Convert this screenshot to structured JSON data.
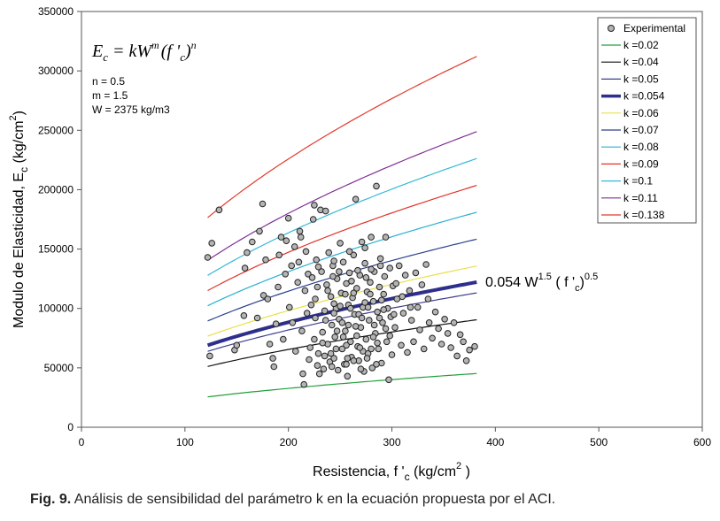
{
  "caption": {
    "label": "Fig. 9.",
    "text": " Análisis de sensibilidad del parámetro k en la ecuación propuesta por el ACI."
  },
  "chart_data": {
    "type": "scatter",
    "title": "",
    "xlabel": "Resistencia, f '",
    "xlabel_sub": "c",
    "xlabel_units": " (kg/cm",
    "xlabel_sup": "2",
    "xlabel_close": " )",
    "ylabel": "Modulo de Elasticidad, E",
    "ylabel_sub": "c",
    "ylabel_units": " (kg/cm",
    "ylabel_sup": "2",
    "ylabel_close": ")",
    "xlim": [
      0,
      600
    ],
    "ylim": [
      0,
      350000
    ],
    "xticks": [
      0,
      100,
      200,
      300,
      400,
      500,
      600
    ],
    "yticks": [
      0,
      50000,
      100000,
      150000,
      200000,
      250000,
      300000,
      350000
    ],
    "xtick_labels": [
      "0",
      "100",
      "200",
      "300",
      "400",
      "500",
      "600"
    ],
    "ytick_labels": [
      "0",
      "50000",
      "100000",
      "150000",
      "200000",
      "250000",
      "300000",
      "350000"
    ],
    "grid": false,
    "legend_position": "top-right",
    "equation": {
      "lhs": "E",
      "lhs_sub": "c",
      "eq": " = kW",
      "m": "m",
      "open": "(f '",
      "f_sub": "c",
      "close": ")",
      "n": "n"
    },
    "params": [
      "n = 0.5",
      "m = 1.5",
      "W = 2375 kg/m3"
    ],
    "annotation": {
      "prefix": "0.054  W",
      "exp1": "1.5",
      "mid": " ( f '",
      "sub": "c",
      "close": ")",
      "exp2": "0.5"
    },
    "curve_x_range": [
      122,
      382
    ],
    "model": {
      "W": 2375,
      "m": 1.5,
      "n": 0.5
    },
    "scatter_series": {
      "name": "Experimental",
      "color": "#b4b4b4",
      "points": [
        [
          122,
          143000
        ],
        [
          126,
          155000
        ],
        [
          133,
          183000
        ],
        [
          124,
          60000
        ],
        [
          148,
          65000
        ],
        [
          150,
          69000
        ],
        [
          157,
          94000
        ],
        [
          158,
          134000
        ],
        [
          160,
          147000
        ],
        [
          165,
          156000
        ],
        [
          172,
          165000
        ],
        [
          175,
          188000
        ],
        [
          170,
          92000
        ],
        [
          176,
          111000
        ],
        [
          178,
          141000
        ],
        [
          180,
          108000
        ],
        [
          182,
          70000
        ],
        [
          185,
          58000
        ],
        [
          186,
          51000
        ],
        [
          188,
          87000
        ],
        [
          190,
          118000
        ],
        [
          191,
          145000
        ],
        [
          193,
          160000
        ],
        [
          195,
          74000
        ],
        [
          197,
          129000
        ],
        [
          198,
          157000
        ],
        [
          200,
          176000
        ],
        [
          201,
          101000
        ],
        [
          203,
          136000
        ],
        [
          204,
          88000
        ],
        [
          206,
          152000
        ],
        [
          207,
          64000
        ],
        [
          209,
          122000
        ],
        [
          210,
          139000
        ],
        [
          211,
          165000
        ],
        [
          212,
          160000
        ],
        [
          213,
          81000
        ],
        [
          214,
          45000
        ],
        [
          215,
          36000
        ],
        [
          216,
          115000
        ],
        [
          217,
          148000
        ],
        [
          218,
          96000
        ],
        [
          219,
          129000
        ],
        [
          220,
          57000
        ],
        [
          221,
          67000
        ],
        [
          222,
          103000
        ],
        [
          223,
          126000
        ],
        [
          224,
          175000
        ],
        [
          225,
          187000
        ],
        [
          226,
          92000
        ],
        [
          227,
          141000
        ],
        [
          228,
          118000
        ],
        [
          229,
          62000
        ],
        [
          230,
          45000
        ],
        [
          231,
          183000
        ],
        [
          232,
          131000
        ],
        [
          233,
          80000
        ],
        [
          234,
          49000
        ],
        [
          235,
          98000
        ],
        [
          236,
          182000
        ],
        [
          237,
          120000
        ],
        [
          238,
          70000
        ],
        [
          239,
          147000
        ],
        [
          240,
          55000
        ],
        [
          241,
          110000
        ],
        [
          242,
          86000
        ],
        [
          243,
          136000
        ],
        [
          244,
          58000
        ],
        [
          245,
          76000
        ],
        [
          246,
          100000
        ],
        [
          247,
          125000
        ],
        [
          248,
          48000
        ],
        [
          249,
          91000
        ],
        [
          250,
          155000
        ],
        [
          251,
          113000
        ],
        [
          252,
          66000
        ],
        [
          253,
          139000
        ],
        [
          254,
          53000
        ],
        [
          255,
          81000
        ],
        [
          256,
          121000
        ],
        [
          257,
          43000
        ],
        [
          258,
          103000
        ],
        [
          259,
          130000
        ],
        [
          260,
          72000
        ],
        [
          261,
          59000
        ],
        [
          262,
          109000
        ],
        [
          263,
          145000
        ],
        [
          264,
          95000
        ],
        [
          265,
          192000
        ],
        [
          266,
          117000
        ],
        [
          267,
          68000
        ],
        [
          268,
          56000
        ],
        [
          269,
          128000
        ],
        [
          270,
          84000
        ],
        [
          271,
          156000
        ],
        [
          272,
          101000
        ],
        [
          273,
          47000
        ],
        [
          274,
          138000
        ],
        [
          275,
          74000
        ],
        [
          276,
          114000
        ],
        [
          277,
          62000
        ],
        [
          278,
          90000
        ],
        [
          279,
          122000
        ],
        [
          280,
          160000
        ],
        [
          281,
          50000
        ],
        [
          282,
          106000
        ],
        [
          283,
          131000
        ],
        [
          284,
          79000
        ],
        [
          285,
          203000
        ],
        [
          286,
          97000
        ],
        [
          287,
          66000
        ],
        [
          288,
          118000
        ],
        [
          289,
          142000
        ],
        [
          290,
          54000
        ],
        [
          291,
          88000
        ],
        [
          292,
          112000
        ],
        [
          293,
          127000
        ],
        [
          294,
          160000
        ],
        [
          295,
          72000
        ],
        [
          296,
          100000
        ],
        [
          297,
          40000
        ],
        [
          298,
          134000
        ],
        [
          299,
          93000
        ],
        [
          300,
          61000
        ],
        [
          301,
          119000
        ],
        [
          303,
          84000
        ],
        [
          305,
          108000
        ],
        [
          307,
          136000
        ],
        [
          309,
          69000
        ],
        [
          311,
          96000
        ],
        [
          313,
          128000
        ],
        [
          315,
          63000
        ],
        [
          317,
          115000
        ],
        [
          319,
          90000
        ],
        [
          321,
          72000
        ],
        [
          323,
          130000
        ],
        [
          325,
          101000
        ],
        [
          327,
          82000
        ],
        [
          329,
          120000
        ],
        [
          331,
          66000
        ],
        [
          333,
          137000
        ],
        [
          336,
          88000
        ],
        [
          339,
          75000
        ],
        [
          342,
          97000
        ],
        [
          345,
          83000
        ],
        [
          348,
          70000
        ],
        [
          351,
          91000
        ],
        [
          354,
          79000
        ],
        [
          357,
          67000
        ],
        [
          360,
          88000
        ],
        [
          363,
          60000
        ],
        [
          366,
          78000
        ],
        [
          369,
          72000
        ],
        [
          372,
          56000
        ],
        [
          375,
          65000
        ],
        [
          380,
          68000
        ],
        [
          244,
          96000
        ],
        [
          252,
          88000
        ],
        [
          261,
          123000
        ],
        [
          268,
          95000
        ],
        [
          274,
          105000
        ],
        [
          283,
          86000
        ],
        [
          292,
          99000
        ],
        [
          241,
          62000
        ],
        [
          256,
          69000
        ],
        [
          266,
          77000
        ],
        [
          276,
          58000
        ],
        [
          286,
          71000
        ],
        [
          233,
          71000
        ],
        [
          247,
          81000
        ],
        [
          258,
          86000
        ],
        [
          271,
          92000
        ],
        [
          280,
          133000
        ],
        [
          226,
          108000
        ],
        [
          238,
          115000
        ],
        [
          249,
          131000
        ],
        [
          263,
          113000
        ],
        [
          277,
          101000
        ],
        [
          288,
          92000
        ],
        [
          253,
          76000
        ],
        [
          263,
          56000
        ],
        [
          272,
          64000
        ],
        [
          244,
          104000
        ],
        [
          255,
          112000
        ],
        [
          267,
          132000
        ],
        [
          279,
          112000
        ],
        [
          236,
          90000
        ],
        [
          246,
          66000
        ],
        [
          257,
          58000
        ],
        [
          269,
          67000
        ],
        [
          282,
          76000
        ],
        [
          294,
          83000
        ],
        [
          225,
          74000
        ],
        [
          243,
          127000
        ],
        [
          260,
          100000
        ],
        [
          275,
          126000
        ],
        [
          290,
          107000
        ],
        [
          302,
          95000
        ],
        [
          235,
          60000
        ],
        [
          250,
          102000
        ],
        [
          265,
          85000
        ],
        [
          280,
          66000
        ],
        [
          298,
          77000
        ],
        [
          310,
          110000
        ],
        [
          228,
          52000
        ],
        [
          242,
          51000
        ],
        [
          256,
          53000
        ],
        [
          270,
          49000
        ],
        [
          285,
          53000
        ],
        [
          229,
          135000
        ],
        [
          244,
          140000
        ],
        [
          259,
          148000
        ],
        [
          274,
          151000
        ],
        [
          289,
          136000
        ],
        [
          304,
          121000
        ],
        [
          318,
          101000
        ],
        [
          335,
          108000
        ]
      ]
    },
    "series": [
      {
        "name": "k =0.02",
        "k": 0.02,
        "color": "#22a03a",
        "width": 1.2
      },
      {
        "name": "k =0.04",
        "k": 0.04,
        "color": "#111111",
        "width": 1.2
      },
      {
        "name": "k =0.05",
        "k": 0.05,
        "color": "#3d3f8f",
        "width": 1.2
      },
      {
        "name": "k =0.054",
        "k": 0.054,
        "color": "#2e2f8c",
        "width": 4
      },
      {
        "name": "k =0.06",
        "k": 0.06,
        "color": "#e8e04a",
        "width": 1.2
      },
      {
        "name": "k =0.07",
        "k": 0.07,
        "color": "#2a3f8e",
        "width": 1.2
      },
      {
        "name": "k =0.08",
        "k": 0.08,
        "color": "#2ab0d0",
        "width": 1.2
      },
      {
        "name": "k =0.09",
        "k": 0.09,
        "color": "#e0332a",
        "width": 1.2
      },
      {
        "name": "k =0.1",
        "k": 0.1,
        "color": "#35b9d6",
        "width": 1.2
      },
      {
        "name": "k =0.11",
        "k": 0.11,
        "color": "#7f2f96",
        "width": 1.2
      },
      {
        "name": "k =0.138",
        "k": 0.138,
        "color": "#e2392c",
        "width": 1.2
      }
    ]
  }
}
